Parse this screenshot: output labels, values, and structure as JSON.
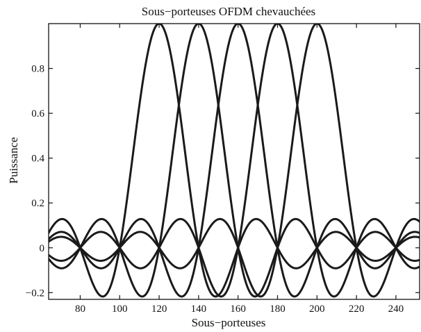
{
  "chart_data": {
    "type": "line",
    "title": "Sous−porteuses OFDM chevauchées",
    "xlabel": "Sous−porteuses",
    "ylabel": "Puissance",
    "xlim": [
      64,
      252
    ],
    "ylim": [
      -0.23,
      1.0
    ],
    "x_ticks": [
      80,
      100,
      120,
      140,
      160,
      180,
      200,
      220,
      240
    ],
    "x_tick_labels": [
      "80",
      "100",
      "120",
      "140",
      "160",
      "180",
      "200",
      "220",
      "240"
    ],
    "y_ticks": [
      -0.2,
      0,
      0.2,
      0.4,
      0.6,
      0.8
    ],
    "y_tick_labels": [
      "−0.2",
      "0",
      "0.2",
      "0.4",
      "0.6",
      "0.8"
    ],
    "grid": false,
    "line_color": "#1a1a1a",
    "subcarrier_spacing": 20,
    "series": [
      {
        "center": 120,
        "peak": 1.0
      },
      {
        "center": 140,
        "peak": 1.0
      },
      {
        "center": 160,
        "peak": 1.0
      },
      {
        "center": 180,
        "peak": 1.0
      },
      {
        "center": 200,
        "peak": 1.0
      }
    ]
  }
}
